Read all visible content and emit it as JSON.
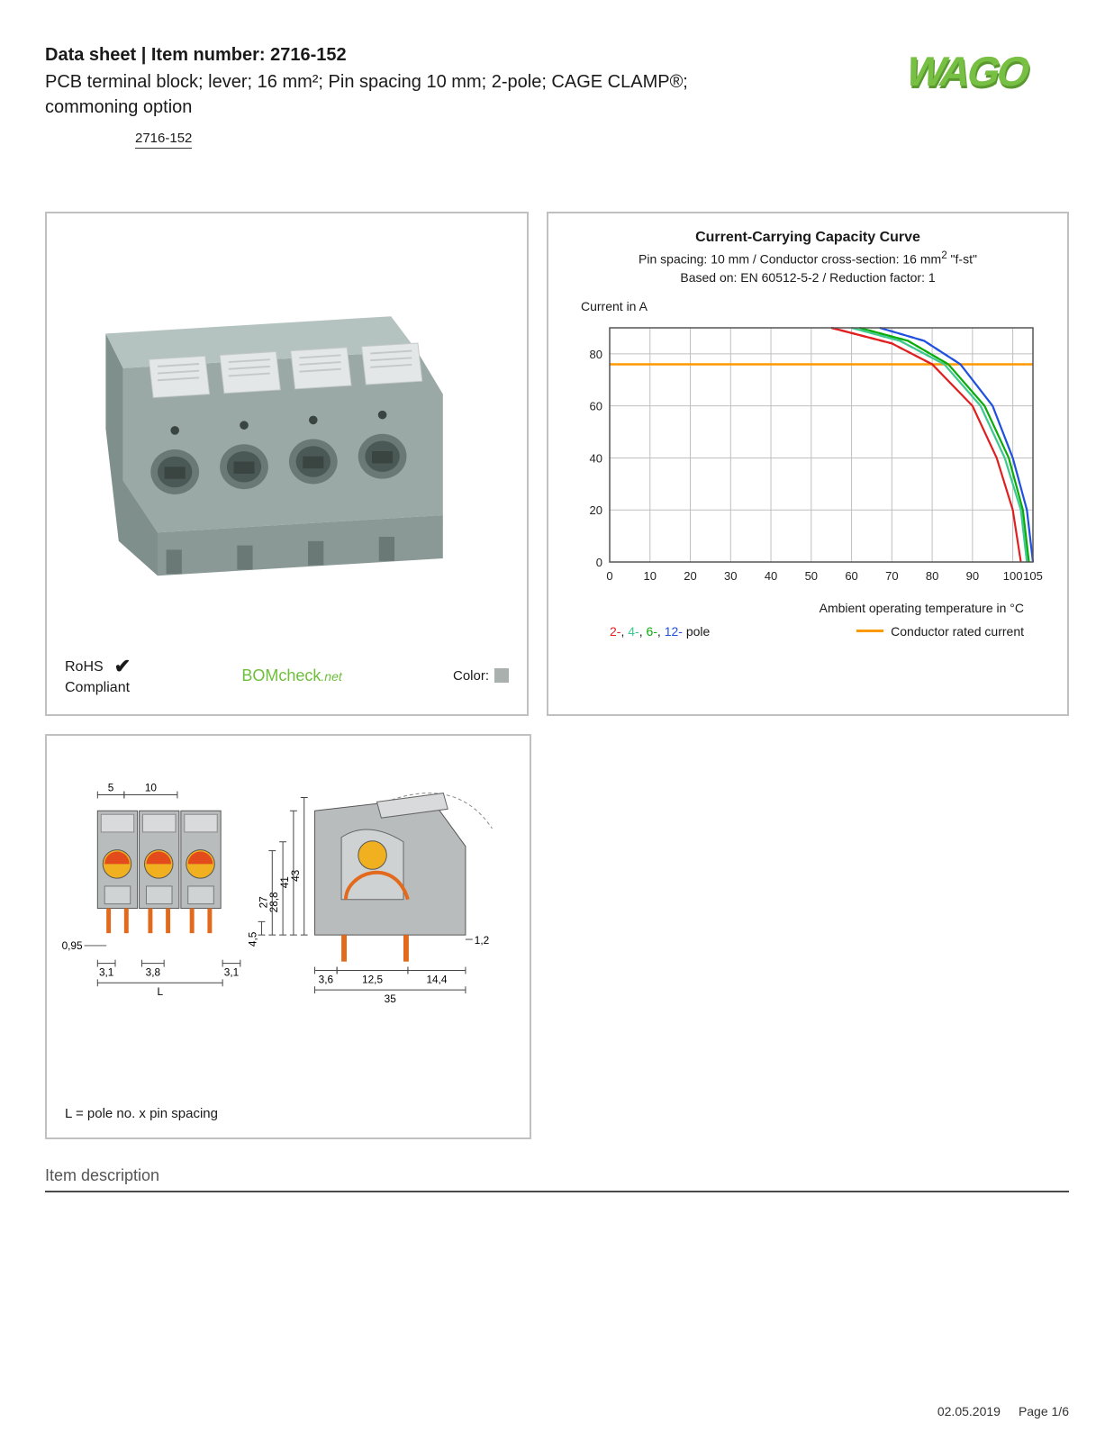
{
  "header": {
    "title_prefix": "Data sheet  |  Item number: ",
    "item_number": "2716-152",
    "subtitle": "PCB terminal block; lever; 16 mm²; Pin spacing 10 mm; 2-pole; CAGE CLAMP®; commoning option",
    "item_link": "2716-152"
  },
  "logo": {
    "text": "WAGO",
    "fill": "#77c043",
    "shadow": "#5a9930"
  },
  "product": {
    "body_color": "#a9b7b4",
    "lever_color": "#e4e7e8",
    "shadow_color": "#7f8f8c",
    "rohs_label": "RoHS",
    "rohs_compliant": "Compliant",
    "bomcheck_text": "BOMcheck",
    "bomcheck_suffix": ".net",
    "color_label": "Color:",
    "swatch_color": "#a9b0ae"
  },
  "chart": {
    "title": "Current-Carrying Capacity Curve",
    "sub1_prefix": "Pin spacing: 10 mm / Conductor cross-section: 16 mm",
    "sub1_suffix": " \"f-st\"",
    "sub2": "Based on: EN 60512-5-2 / Reduction factor: 1",
    "y_label": "Current in A",
    "x_label": "Ambient operating temperature in °C",
    "x_min": 0,
    "x_max": 105,
    "y_min": 0,
    "y_max": 90,
    "x_ticks": [
      0,
      10,
      20,
      30,
      40,
      50,
      60,
      70,
      80,
      90,
      100,
      105
    ],
    "y_ticks": [
      0,
      20,
      40,
      60,
      80
    ],
    "grid_color": "#bfbfbf",
    "bg_color": "#ffffff",
    "axis_color": "#555555",
    "rated_current_y": 76,
    "rated_color": "#ff9900",
    "curves": [
      {
        "color": "#e02020",
        "dash_start_x": 55,
        "points": [
          [
            55,
            90
          ],
          [
            70,
            84
          ],
          [
            80,
            76
          ],
          [
            90,
            60
          ],
          [
            96,
            40
          ],
          [
            100,
            20
          ],
          [
            102,
            0
          ]
        ]
      },
      {
        "color": "#3cc98f",
        "dash_start_x": 60,
        "points": [
          [
            60,
            90
          ],
          [
            72,
            85
          ],
          [
            83,
            76
          ],
          [
            92,
            60
          ],
          [
            98,
            40
          ],
          [
            102,
            20
          ],
          [
            103.5,
            0
          ]
        ]
      },
      {
        "color": "#0aab0a",
        "dash_start_x": 62,
        "points": [
          [
            62,
            90
          ],
          [
            74,
            85
          ],
          [
            84,
            76
          ],
          [
            93,
            60
          ],
          [
            99,
            40
          ],
          [
            102.5,
            20
          ],
          [
            104,
            0
          ]
        ]
      },
      {
        "color": "#2050e0",
        "dash_start_x": 67,
        "points": [
          [
            67,
            90
          ],
          [
            78,
            85
          ],
          [
            87,
            76
          ],
          [
            95,
            60
          ],
          [
            100,
            40
          ],
          [
            103.5,
            20
          ],
          [
            105,
            0
          ]
        ]
      }
    ],
    "legend_poles": "2-, 4-, 6-, 12- pole",
    "legend_rated": "Conductor rated current",
    "tick_fontsize": 13,
    "label_fontsize": 14,
    "title_fontsize": 16,
    "line_width": 2.2
  },
  "dimensions": {
    "note": "L = pole no. x pin spacing",
    "front": {
      "top_dim1": "5",
      "top_dim2": "10",
      "bot_dim_left": "0,95",
      "bot_dim1": "3,1",
      "bot_dim2": "3,8",
      "bot_dim3": "3,1",
      "L_label": "L"
    },
    "side": {
      "h1": "43",
      "h2": "41",
      "h3": "28,8",
      "h4": "27",
      "h5": "4,5",
      "w1": "3,6",
      "w2": "12,5",
      "w3": "14,4",
      "w4": "1,2",
      "total_w": "35"
    },
    "body_fill": "#b9bcbd",
    "lever_fill": "#d8dadb",
    "accent_fill": "#f0b020",
    "wire_fill": "#e36a1c",
    "dim_line_color": "#444444",
    "dim_fontsize": 12
  },
  "section": {
    "heading": "Item description"
  },
  "footer": {
    "date": "02.05.2019",
    "page": "Page 1/6"
  }
}
